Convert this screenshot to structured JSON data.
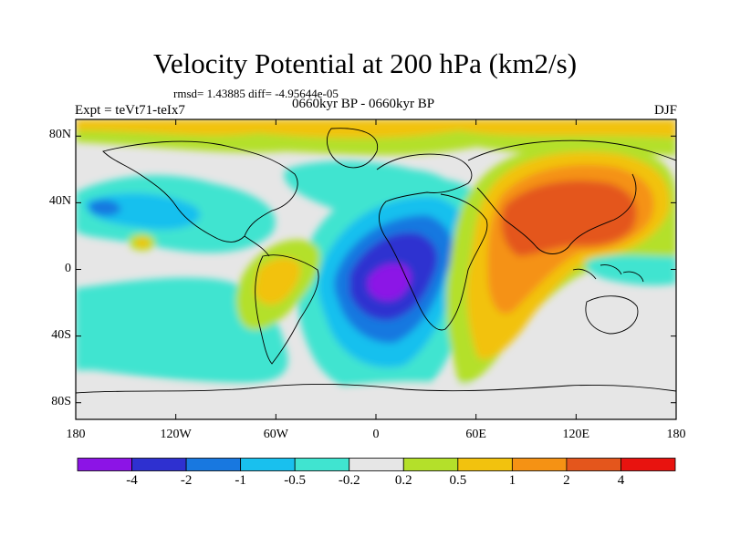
{
  "header": {
    "title": "Velocity Potential at 200 hPa (km2/s)",
    "stats": "rmsd= 1.43885 diff= -4.95644e-05",
    "experiment": "Expt = teVt71-teIx7",
    "period": "0660kyr BP - 0660kyr BP",
    "season": "DJF"
  },
  "map": {
    "projection": "cylindrical equidistant",
    "lon_range": [
      -180,
      180
    ],
    "lat_range": [
      -90,
      90
    ],
    "lon_ticks": [
      {
        "value": -180,
        "label": "180"
      },
      {
        "value": -120,
        "label": "120W"
      },
      {
        "value": -60,
        "label": "60W"
      },
      {
        "value": 0,
        "label": "0"
      },
      {
        "value": 60,
        "label": "60E"
      },
      {
        "value": 120,
        "label": "120E"
      },
      {
        "value": 180,
        "label": "180"
      }
    ],
    "lat_ticks": [
      {
        "value": 80,
        "label": "80N"
      },
      {
        "value": 40,
        "label": "40N"
      },
      {
        "value": 0,
        "label": "0"
      },
      {
        "value": -40,
        "label": "40S"
      },
      {
        "value": -80,
        "label": "80S"
      }
    ],
    "field_centers": [
      {
        "region": "tropical Atlantic / west Africa",
        "lon": -10,
        "lat": -10,
        "approx_value": -4.5
      },
      {
        "region": "Indian Ocean / Asia",
        "lon": 105,
        "lat": 30,
        "approx_value": 2.5
      },
      {
        "region": "Maritime Continent",
        "lon": 120,
        "lat": 0,
        "approx_value": 1.5
      },
      {
        "region": "South America",
        "lon": -60,
        "lat": -5,
        "approx_value": 0.8
      },
      {
        "region": "North Pacific",
        "lon": -165,
        "lat": 30,
        "approx_value": -1.2
      }
    ]
  },
  "colorbar": {
    "levels": [
      "-4",
      "-2",
      "-1",
      "-0.5",
      "-0.2",
      "0.2",
      "0.5",
      "1",
      "2",
      "4"
    ],
    "colors": [
      "#8c14e6",
      "#2e30d0",
      "#1878e0",
      "#19c0ee",
      "#40e4d0",
      "#e6e6e6",
      "#b4e02a",
      "#f2c20e",
      "#f59214",
      "#e4561c",
      "#e8130f"
    ]
  }
}
